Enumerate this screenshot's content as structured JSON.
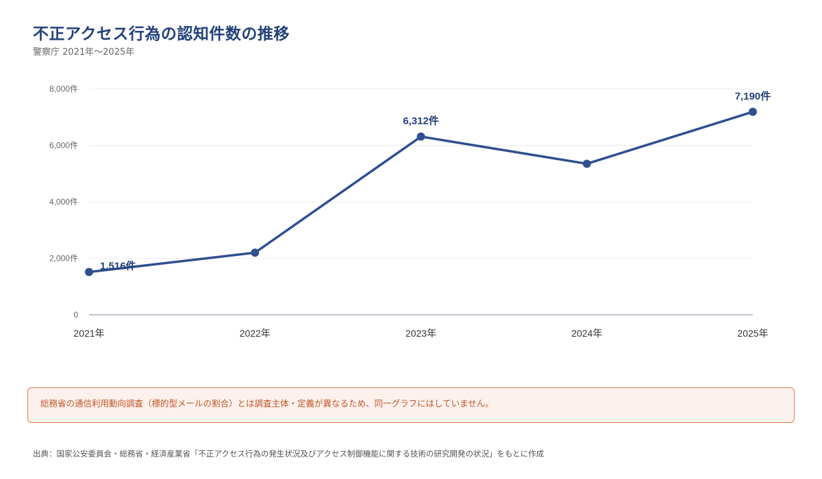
{
  "header": {
    "title": "不正アクセス行為の認知件数の推移",
    "subtitle": "警察庁 2021年〜2025年"
  },
  "chart_data": {
    "type": "line",
    "title": "不正アクセス行為の認知件数の推移",
    "subtitle": "警察庁 2021年〜2025年",
    "categories": [
      "2021年",
      "2022年",
      "2023年",
      "2024年",
      "2025年"
    ],
    "series": [
      {
        "values": [
          1516,
          2200,
          6312,
          5350,
          7190
        ],
        "color": "#2f4f8f"
      }
    ],
    "data_labels": [
      "1,516件",
      "",
      "6,312件",
      "",
      "7,190件"
    ],
    "y_ticks": [
      "0",
      "2,000件",
      "4,000件",
      "6,000件",
      "8,000件"
    ],
    "y_tick_values": [
      0,
      2000,
      4000,
      6000,
      8000
    ],
    "ylim": [
      0,
      8000
    ],
    "grid": true,
    "xlabel": "",
    "ylabel": ""
  },
  "note": {
    "text": "総務省の通信利用動向調査（標的型メールの割合）とは調査主体・定義が異なるため、同一グラフにはしていません。"
  },
  "source": {
    "text": "出典：国家公安委員会・総務省・経済産業省「不正アクセス行為の発生状況及びアクセス制御機能に関する技術の研究開発の状況」をもとに作成"
  }
}
